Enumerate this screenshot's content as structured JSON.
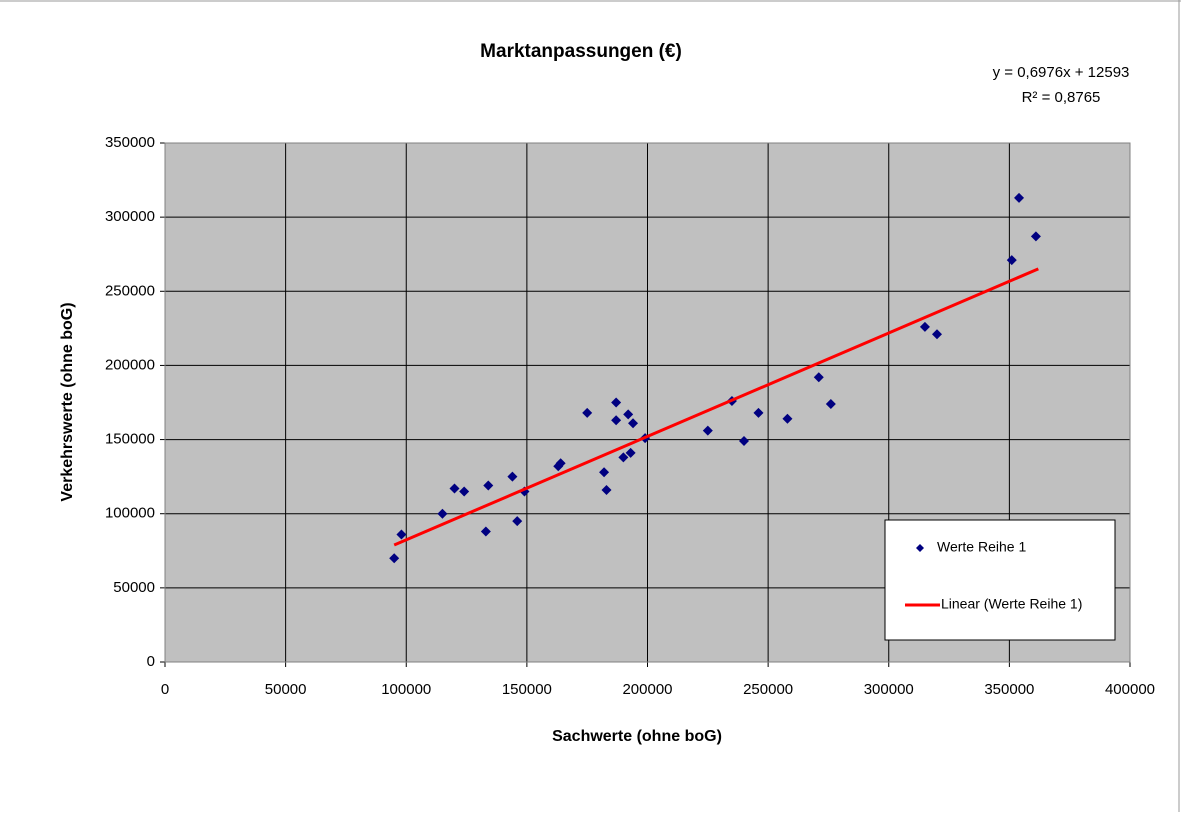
{
  "chart_data": {
    "type": "scatter",
    "title": "Marktanpassungen (€)",
    "annotations": [
      "y = 0,6976x + 12593",
      "R² = 0,8765"
    ],
    "x_label": "Sachwerte (ohne boG)",
    "y_label": "Verkehrswerte (ohne boG)",
    "xlim": [
      0,
      400000
    ],
    "xticks": [
      0,
      50000,
      100000,
      150000,
      200000,
      250000,
      300000,
      350000,
      400000
    ],
    "ylim": [
      0,
      350000
    ],
    "yticks": [
      0,
      50000,
      100000,
      150000,
      200000,
      250000,
      300000,
      350000
    ],
    "grid": true,
    "legend": "right",
    "series": [
      {
        "name": "Werte Reihe 1",
        "color": "#000080",
        "type": "scatter",
        "x": [
          95000,
          98000,
          115000,
          120000,
          124000,
          133000,
          134000,
          144000,
          146000,
          149000,
          163000,
          164000,
          175000,
          182000,
          183000,
          187000,
          187000,
          190000,
          192000,
          193000,
          194000,
          199000,
          225000,
          235000,
          240000,
          246000,
          258000,
          271000,
          276000,
          315000,
          320000,
          351000,
          354000,
          361000
        ],
        "values": [
          70000,
          86000,
          100000,
          117000,
          115000,
          88000,
          119000,
          125000,
          95000,
          115000,
          132000,
          134000,
          168000,
          128000,
          116000,
          175000,
          163000,
          138000,
          167000,
          141000,
          161000,
          151000,
          156000,
          176000,
          149000,
          168000,
          164000,
          192000,
          174000,
          226000,
          221000,
          271000,
          313000,
          287000
        ]
      },
      {
        "name": "Linear (Werte Reihe 1)",
        "color": "#ff0000",
        "type": "line",
        "x": [
          95000,
          362000
        ],
        "values": [
          78865,
          265124
        ]
      }
    ]
  }
}
